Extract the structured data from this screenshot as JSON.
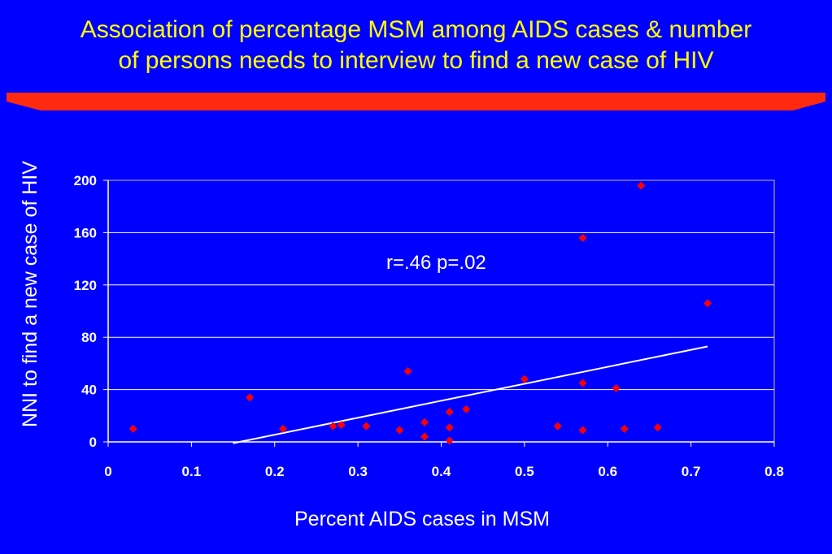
{
  "title": {
    "line1": "Association of percentage MSM among AIDS cases & number",
    "line2": "of persons needs to interview to find a new case of HIV"
  },
  "colors": {
    "background": "#0000ff",
    "title": "#ffff00",
    "banner": "#ff2a10",
    "markers": "#ff0000",
    "trendline": "#ffffff",
    "gridlines": "#ffffff"
  },
  "chart_data": {
    "type": "scatter",
    "xlabel": "Percent AIDS cases in MSM",
    "ylabel": "NNI  to find a new case of HIV",
    "xlim": [
      0,
      0.8
    ],
    "ylim": [
      0,
      200
    ],
    "xticks": [
      "0",
      "0.1",
      "0.2",
      "0.3",
      "0.4",
      "0.5",
      "0.6",
      "0.7",
      "0.8"
    ],
    "yticks": [
      "0",
      "40",
      "80",
      "120",
      "160",
      "200"
    ],
    "grid": "horizontal",
    "annotation": "r=.46  p=.02",
    "points": [
      {
        "x": 0.03,
        "y": 10
      },
      {
        "x": 0.17,
        "y": 34
      },
      {
        "x": 0.21,
        "y": 10
      },
      {
        "x": 0.27,
        "y": 12
      },
      {
        "x": 0.28,
        "y": 13
      },
      {
        "x": 0.31,
        "y": 12
      },
      {
        "x": 0.35,
        "y": 9
      },
      {
        "x": 0.36,
        "y": 54
      },
      {
        "x": 0.38,
        "y": 15
      },
      {
        "x": 0.38,
        "y": 4
      },
      {
        "x": 0.41,
        "y": 23
      },
      {
        "x": 0.41,
        "y": 11
      },
      {
        "x": 0.41,
        "y": 1
      },
      {
        "x": 0.43,
        "y": 25
      },
      {
        "x": 0.5,
        "y": 48
      },
      {
        "x": 0.54,
        "y": 12
      },
      {
        "x": 0.57,
        "y": 156
      },
      {
        "x": 0.57,
        "y": 45
      },
      {
        "x": 0.57,
        "y": 9
      },
      {
        "x": 0.61,
        "y": 41
      },
      {
        "x": 0.62,
        "y": 10
      },
      {
        "x": 0.64,
        "y": 196
      },
      {
        "x": 0.66,
        "y": 11
      },
      {
        "x": 0.72,
        "y": 106
      }
    ],
    "trendline": {
      "x": [
        0.15,
        0.72
      ],
      "y": [
        -1,
        73
      ]
    }
  }
}
